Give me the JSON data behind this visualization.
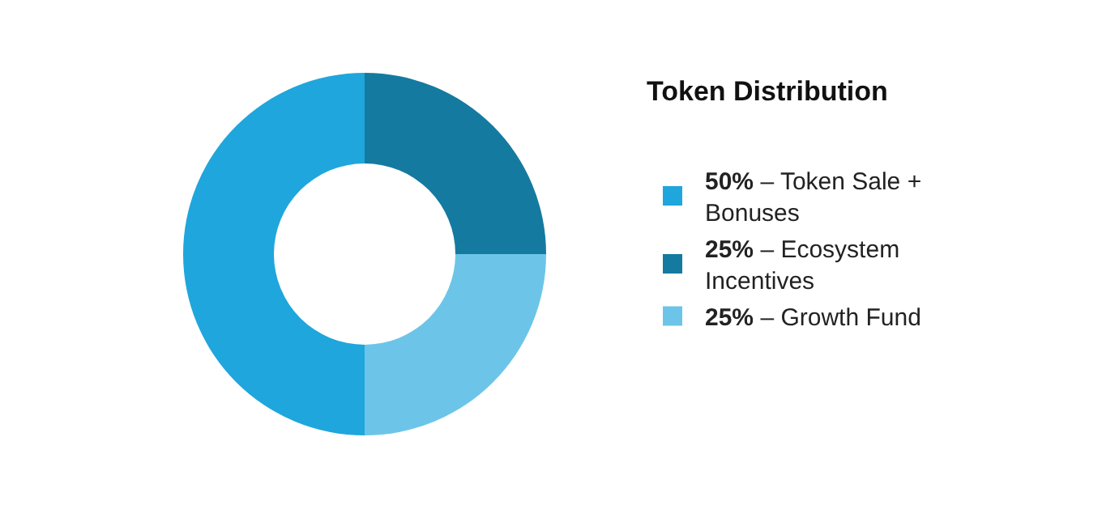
{
  "chart_data": {
    "type": "donut",
    "title": "Token Distribution",
    "categories": [
      "50% – Token Sale + Bonuses",
      "25% – Ecosystem Incentives",
      "25% – Growth Fund"
    ],
    "values": [
      50,
      25,
      25
    ],
    "colors": [
      "#1fa6dc",
      "#157aa0",
      "#6cc5e8"
    ],
    "legend": "right"
  }
}
